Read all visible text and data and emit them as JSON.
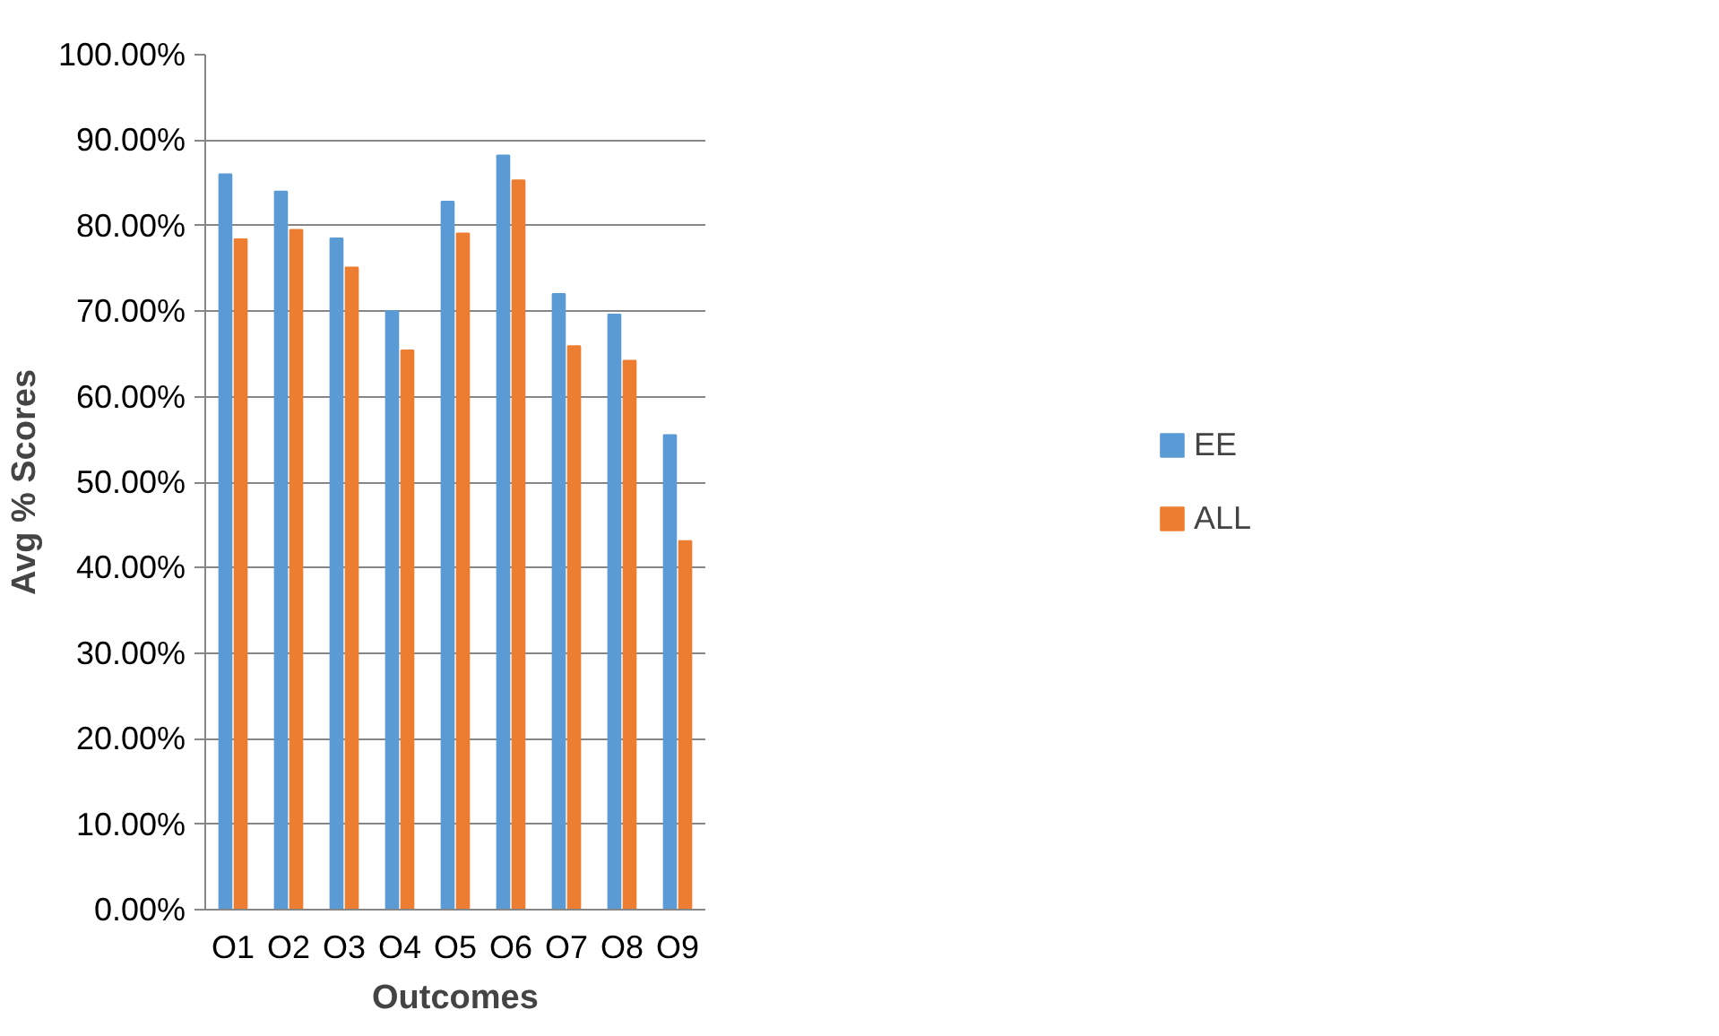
{
  "chart_data": {
    "type": "bar",
    "xlabel": "Outcomes",
    "ylabel": "Avg % Scores",
    "categories": [
      "O1",
      "O2",
      "O3",
      "O4",
      "O5",
      "O6",
      "O7",
      "O8",
      "O9"
    ],
    "series": [
      {
        "name": "EE",
        "color": "#5b9bd5",
        "values": [
          86.0,
          84.0,
          78.5,
          70.0,
          82.8,
          88.2,
          72.0,
          69.6,
          55.5
        ]
      },
      {
        "name": "ALL",
        "color": "#ed7d31",
        "values": [
          78.4,
          79.5,
          75.1,
          65.4,
          79.1,
          85.3,
          65.9,
          64.2,
          43.1
        ]
      }
    ],
    "ylim": [
      0,
      100
    ],
    "yticks": [
      {
        "value": 0,
        "label": "0.00%"
      },
      {
        "value": 10,
        "label": "10.00%"
      },
      {
        "value": 20,
        "label": "20.00%"
      },
      {
        "value": 30,
        "label": "30.00%"
      },
      {
        "value": 40,
        "label": "40.00%"
      },
      {
        "value": 50,
        "label": "50.00%"
      },
      {
        "value": 60,
        "label": "60.00%"
      },
      {
        "value": 70,
        "label": "70.00%"
      },
      {
        "value": 80,
        "label": "80.00%"
      },
      {
        "value": 90,
        "label": "90.00%"
      },
      {
        "value": 100,
        "label": "100.00%"
      }
    ],
    "grid": "y",
    "legend": "right"
  }
}
